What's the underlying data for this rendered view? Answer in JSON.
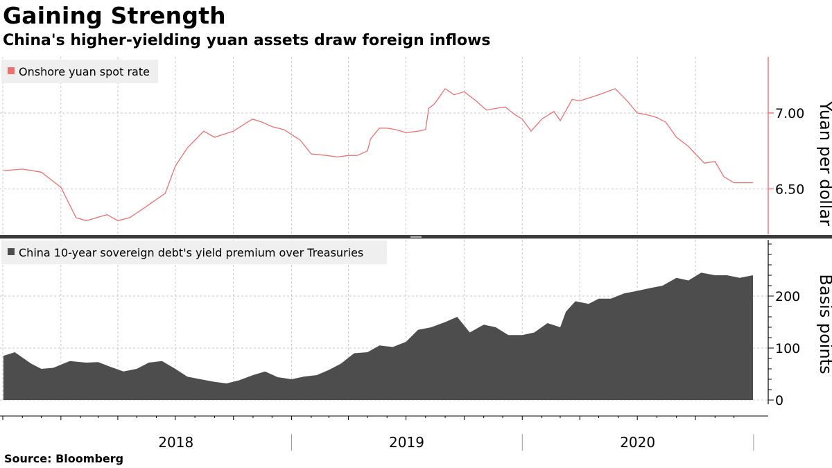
{
  "header": {
    "title": "Gaining Strength",
    "subtitle": "China's higher-yielding yuan assets draw foreign inflows"
  },
  "footer": {
    "source": "Source: Bloomberg"
  },
  "colors": {
    "yuan_series": "#f07070",
    "premium_series": "#4d4d4d",
    "grid": "#c8c8c8",
    "legend_bg": "#efefef",
    "divider": "#3a3a3a"
  },
  "chart_data": [
    {
      "type": "line",
      "legend": "Onshore yuan spot rate",
      "ylabel": "Yuan per dollar",
      "ylim": [
        6.2,
        7.37
      ],
      "yticks": [
        6.5,
        7.0
      ],
      "ytick_labels": [
        "6.50",
        "7.00"
      ],
      "x_range": [
        "2017-10-01",
        "2020-12-31"
      ],
      "series": [
        {
          "name": "Onshore yuan spot rate",
          "x": [
            "2017-10-02",
            "2017-11-01",
            "2017-12-01",
            "2018-01-01",
            "2018-01-25",
            "2018-02-10",
            "2018-03-15",
            "2018-04-01",
            "2018-04-20",
            "2018-05-15",
            "2018-06-01",
            "2018-06-15",
            "2018-07-01",
            "2018-07-20",
            "2018-08-15",
            "2018-09-01",
            "2018-10-01",
            "2018-10-31",
            "2018-11-15",
            "2018-12-01",
            "2018-12-20",
            "2019-01-15",
            "2019-02-01",
            "2019-02-25",
            "2019-03-15",
            "2019-04-01",
            "2019-04-15",
            "2019-05-01",
            "2019-05-06",
            "2019-05-20",
            "2019-06-01",
            "2019-06-15",
            "2019-07-01",
            "2019-07-20",
            "2019-08-01",
            "2019-08-06",
            "2019-08-15",
            "2019-09-01",
            "2019-09-15",
            "2019-10-01",
            "2019-10-20",
            "2019-11-05",
            "2019-11-20",
            "2019-12-05",
            "2019-12-20",
            "2020-01-01",
            "2020-01-15",
            "2020-02-01",
            "2020-02-20",
            "2020-03-01",
            "2020-03-20",
            "2020-04-01",
            "2020-05-01",
            "2020-05-27",
            "2020-06-15",
            "2020-07-01",
            "2020-07-15",
            "2020-08-01",
            "2020-08-15",
            "2020-09-01",
            "2020-09-20",
            "2020-10-01",
            "2020-10-15",
            "2020-11-01",
            "2020-11-15",
            "2020-12-01",
            "2020-12-31"
          ],
          "values": [
            6.62,
            6.63,
            6.61,
            6.51,
            6.31,
            6.29,
            6.33,
            6.29,
            6.31,
            6.38,
            6.43,
            6.47,
            6.65,
            6.77,
            6.88,
            6.84,
            6.88,
            6.96,
            6.94,
            6.91,
            6.89,
            6.82,
            6.73,
            6.72,
            6.71,
            6.72,
            6.72,
            6.75,
            6.83,
            6.9,
            6.9,
            6.89,
            6.87,
            6.88,
            6.89,
            7.03,
            7.06,
            7.16,
            7.12,
            7.14,
            7.08,
            7.02,
            7.03,
            7.04,
            6.99,
            6.96,
            6.88,
            6.96,
            7.01,
            6.95,
            7.09,
            7.08,
            7.12,
            7.16,
            7.08,
            7.0,
            6.99,
            6.97,
            6.94,
            6.84,
            6.78,
            6.73,
            6.67,
            6.68,
            6.58,
            6.54,
            6.54
          ]
        }
      ]
    },
    {
      "type": "area",
      "legend": "China 10-year sovereign debt's yield premium over Treasuries",
      "ylabel": "Basis points",
      "ylim": [
        0,
        300
      ],
      "yticks": [
        0,
        100,
        200
      ],
      "ytick_labels": [
        "0",
        "100",
        "200"
      ],
      "x_range": [
        "2017-10-01",
        "2020-12-31"
      ],
      "series": [
        {
          "name": "China 10-year sovereign debt's yield premium over Treasuries",
          "x": [
            "2017-10-02",
            "2017-10-20",
            "2017-11-15",
            "2017-12-01",
            "2017-12-20",
            "2018-01-15",
            "2018-02-10",
            "2018-03-01",
            "2018-03-20",
            "2018-04-10",
            "2018-05-01",
            "2018-05-20",
            "2018-06-10",
            "2018-07-01",
            "2018-07-20",
            "2018-08-10",
            "2018-09-01",
            "2018-09-20",
            "2018-10-10",
            "2018-11-01",
            "2018-11-20",
            "2018-12-10",
            "2019-01-01",
            "2019-01-20",
            "2019-02-10",
            "2019-03-01",
            "2019-03-20",
            "2019-04-10",
            "2019-05-01",
            "2019-05-20",
            "2019-06-10",
            "2019-07-01",
            "2019-07-20",
            "2019-08-10",
            "2019-09-01",
            "2019-09-20",
            "2019-10-10",
            "2019-11-01",
            "2019-11-20",
            "2019-12-10",
            "2020-01-01",
            "2020-01-20",
            "2020-02-10",
            "2020-03-01",
            "2020-03-10",
            "2020-03-25",
            "2020-04-15",
            "2020-05-01",
            "2020-05-20",
            "2020-06-10",
            "2020-07-01",
            "2020-07-20",
            "2020-08-10",
            "2020-09-01",
            "2020-09-20",
            "2020-10-10",
            "2020-11-01",
            "2020-11-20",
            "2020-12-10",
            "2020-12-31"
          ],
          "values": [
            85,
            92,
            70,
            60,
            62,
            75,
            72,
            73,
            64,
            55,
            60,
            72,
            75,
            60,
            45,
            40,
            35,
            32,
            38,
            48,
            55,
            44,
            40,
            45,
            48,
            58,
            70,
            90,
            92,
            105,
            102,
            112,
            135,
            140,
            150,
            160,
            130,
            145,
            140,
            125,
            125,
            130,
            148,
            140,
            170,
            190,
            185,
            195,
            195,
            205,
            210,
            215,
            220,
            235,
            230,
            245,
            240,
            240,
            235,
            240
          ]
        }
      ]
    }
  ],
  "x_axis": {
    "year_labels": [
      "2018",
      "2019",
      "2020"
    ]
  }
}
